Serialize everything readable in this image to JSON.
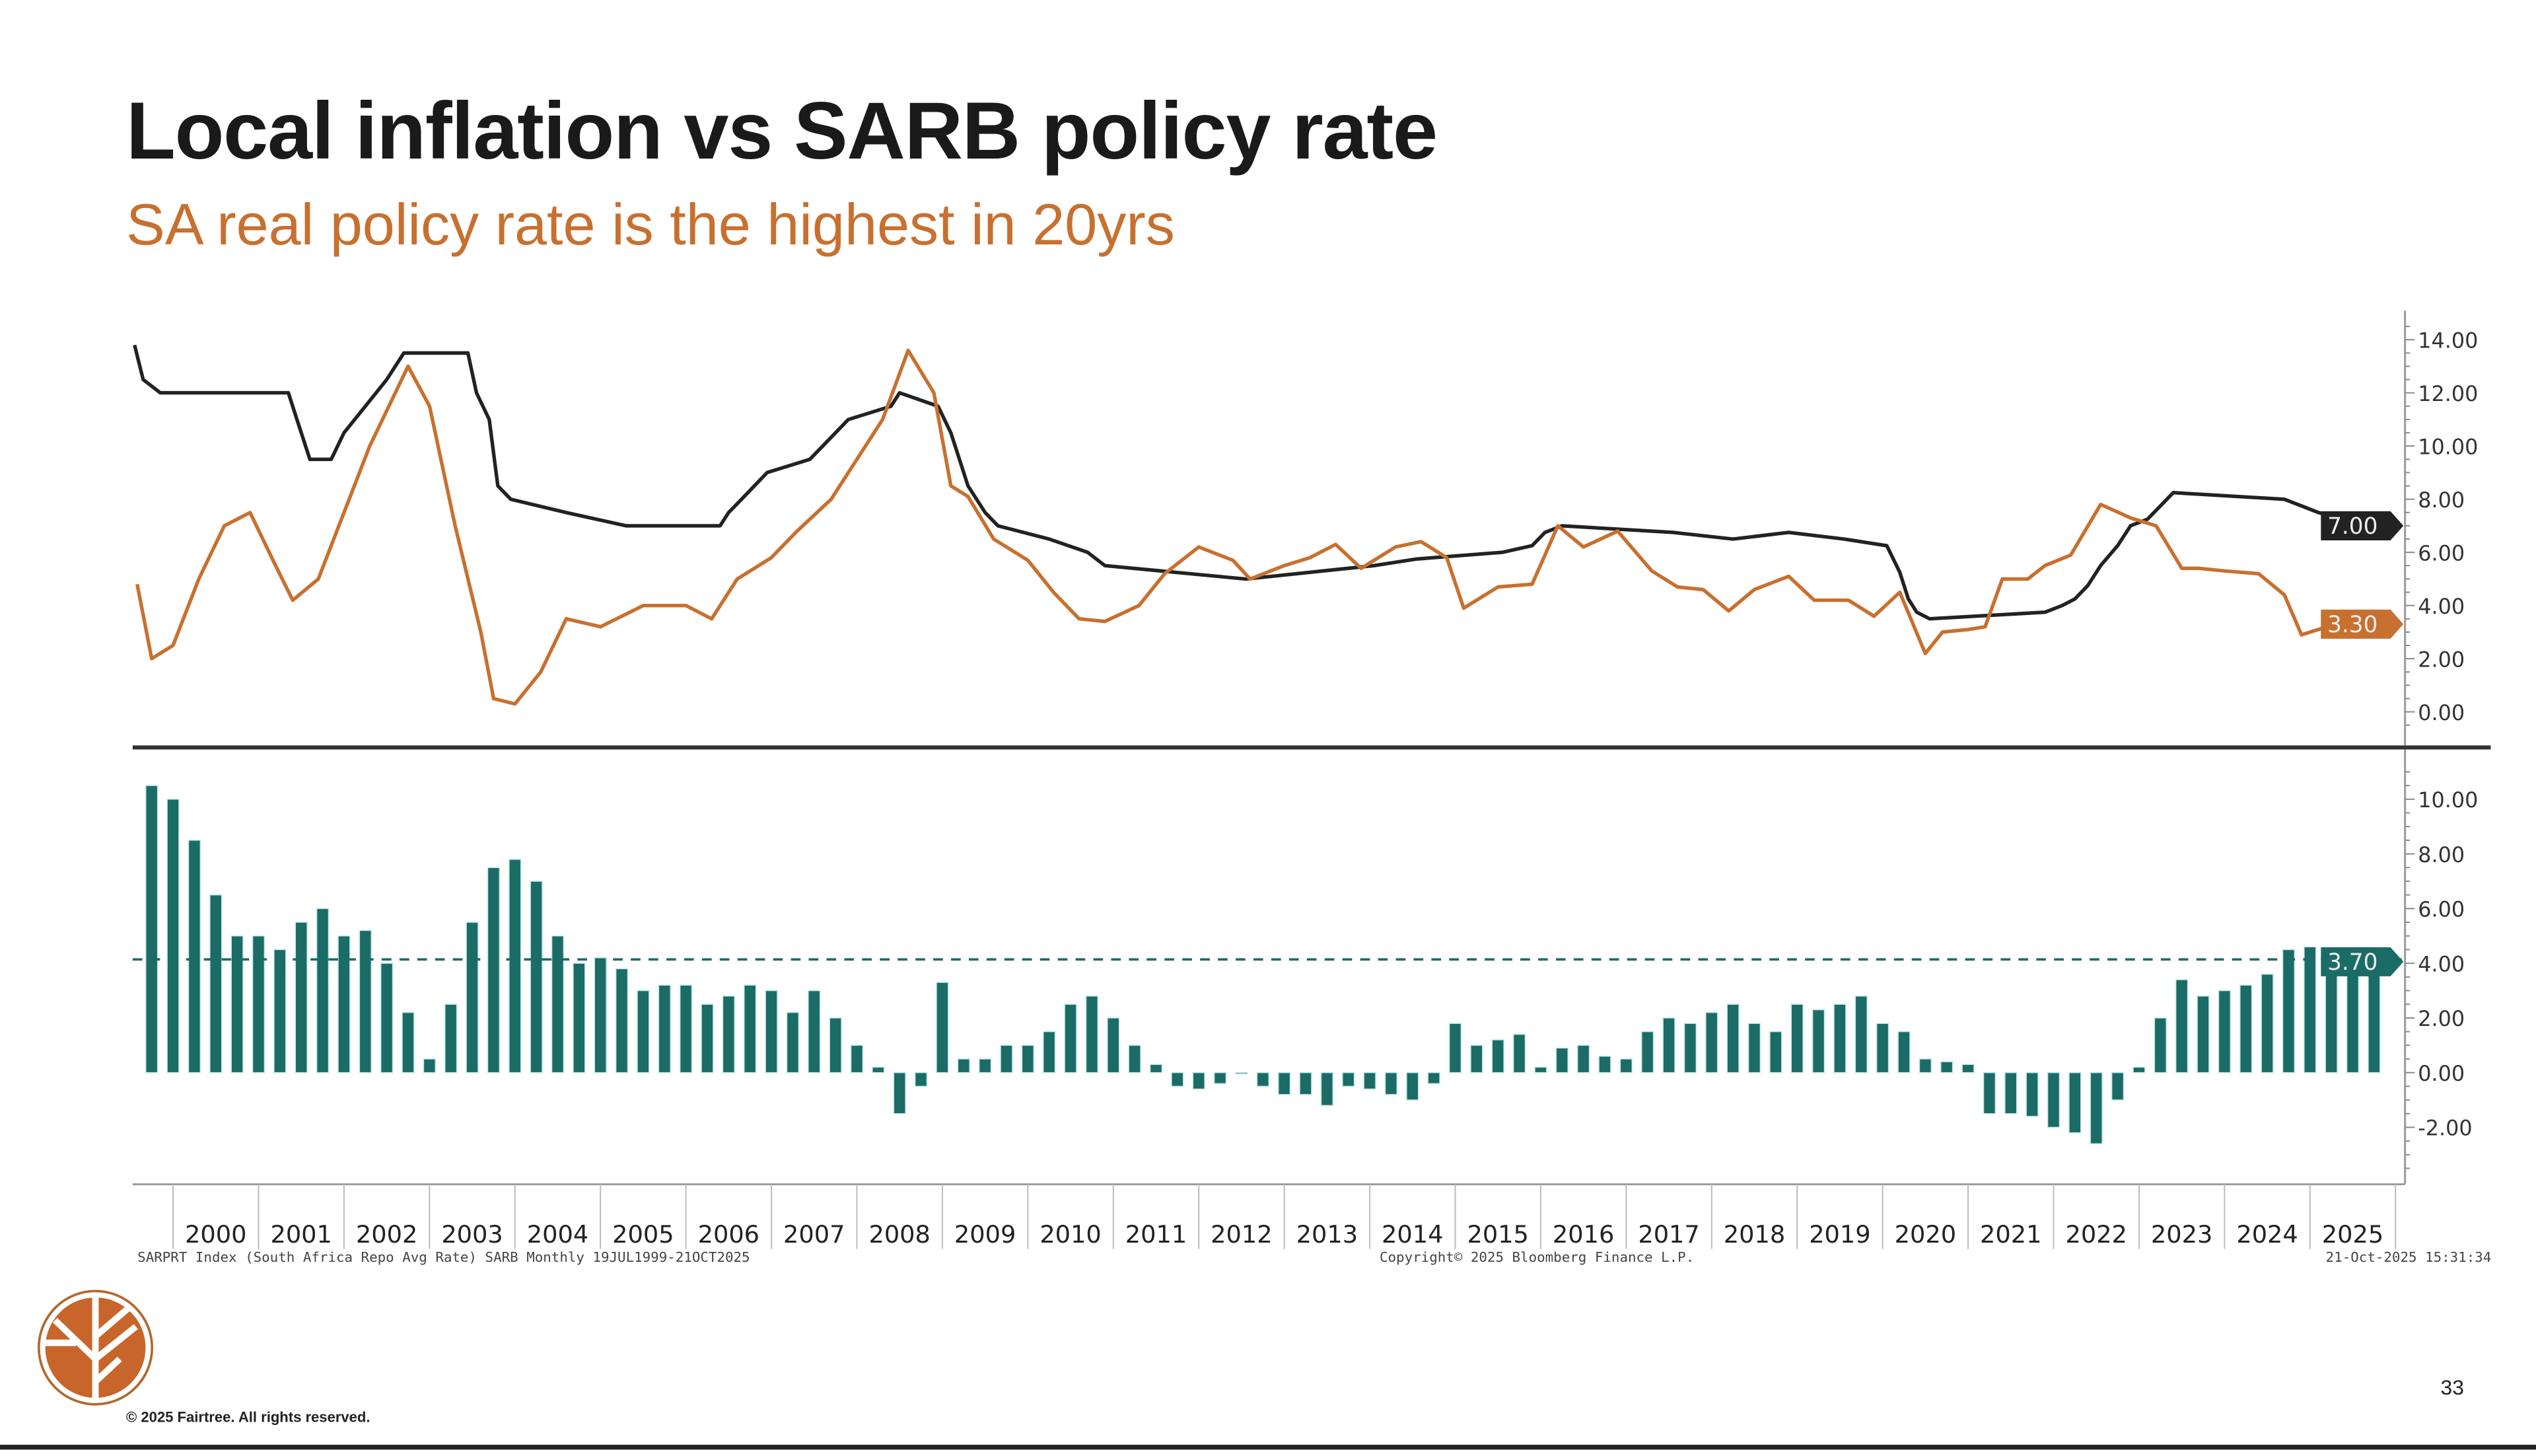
{
  "header": {
    "title": "Local inflation vs SARB policy rate",
    "subtitle": "SA real policy rate is the highest in 20yrs"
  },
  "footer": {
    "source": "SARPRT Index (South Africa Repo Avg Rate) SARB Monthly 19JUL1999-21OCT2025",
    "bloomberg_copyright": "Copyright© 2025 Bloomberg Finance L.P.",
    "timestamp": "21-Oct-2025 15:31:34",
    "copyright": "© 2025 Fairtree. All rights reserved.",
    "page_number": "33",
    "logo_text": "Fairtree"
  },
  "colors": {
    "repo": "#222222",
    "cpi": "#c8702f",
    "real_rate": "#1b6b66",
    "real_rate_light": "#bfe9e6",
    "accent": "#c8702f"
  },
  "chart_data": [
    {
      "type": "line",
      "panel": "top",
      "ylim": [
        -1,
        15
      ],
      "yticks": [
        "14.00",
        "12.00",
        "10.00",
        "8.00",
        "6.00",
        "4.00",
        "2.00",
        "0.00"
      ],
      "ytick_values": [
        14,
        12,
        10,
        8,
        6,
        4,
        2,
        0
      ],
      "grid": false,
      "series": [
        {
          "key": "repo",
          "last_value_label": "7.00",
          "step": true,
          "points": [
            [
              1999.55,
              13.8
            ],
            [
              1999.65,
              12.5
            ],
            [
              1999.85,
              12
            ],
            [
              2001.35,
              12
            ],
            [
              2001.45,
              11
            ],
            [
              2001.6,
              9.5
            ],
            [
              2001.85,
              9.5
            ],
            [
              2002.0,
              10.5
            ],
            [
              2002.25,
              11.5
            ],
            [
              2002.5,
              12.5
            ],
            [
              2002.7,
              13.5
            ],
            [
              2003.45,
              13.5
            ],
            [
              2003.55,
              12
            ],
            [
              2003.7,
              11
            ],
            [
              2003.8,
              8.5
            ],
            [
              2003.95,
              8
            ],
            [
              2004.6,
              7.5
            ],
            [
              2005.3,
              7
            ],
            [
              2006.4,
              7
            ],
            [
              2006.5,
              7.5
            ],
            [
              2006.65,
              8
            ],
            [
              2006.95,
              9
            ],
            [
              2007.45,
              9.5
            ],
            [
              2007.6,
              10
            ],
            [
              2007.9,
              11
            ],
            [
              2008.4,
              11.5
            ],
            [
              2008.5,
              12
            ],
            [
              2008.95,
              11.5
            ],
            [
              2009.1,
              10.5
            ],
            [
              2009.3,
              8.5
            ],
            [
              2009.5,
              7.5
            ],
            [
              2009.65,
              7
            ],
            [
              2010.25,
              6.5
            ],
            [
              2010.7,
              6
            ],
            [
              2010.9,
              5.5
            ],
            [
              2012.55,
              5
            ],
            [
              2014.05,
              5.5
            ],
            [
              2014.55,
              5.75
            ],
            [
              2015.55,
              6
            ],
            [
              2015.9,
              6.25
            ],
            [
              2016.05,
              6.75
            ],
            [
              2016.25,
              7
            ],
            [
              2017.55,
              6.75
            ],
            [
              2018.25,
              6.5
            ],
            [
              2018.9,
              6.75
            ],
            [
              2019.55,
              6.5
            ],
            [
              2020.05,
              6.25
            ],
            [
              2020.2,
              5.25
            ],
            [
              2020.3,
              4.25
            ],
            [
              2020.4,
              3.75
            ],
            [
              2020.55,
              3.5
            ],
            [
              2021.9,
              3.75
            ],
            [
              2022.1,
              4
            ],
            [
              2022.25,
              4.25
            ],
            [
              2022.4,
              4.75
            ],
            [
              2022.55,
              5.5
            ],
            [
              2022.75,
              6.25
            ],
            [
              2022.9,
              7
            ],
            [
              2023.1,
              7.25
            ],
            [
              2023.25,
              7.75
            ],
            [
              2023.4,
              8.25
            ],
            [
              2024.7,
              8
            ],
            [
              2024.9,
              7.75
            ],
            [
              2025.1,
              7.5
            ],
            [
              2025.4,
              7.25
            ],
            [
              2025.6,
              7
            ],
            [
              2025.73,
              7
            ]
          ]
        },
        {
          "key": "cpi",
          "last_value_label": "3.30",
          "step": false,
          "points": [
            [
              1999.58,
              4.8
            ],
            [
              1999.75,
              2.0
            ],
            [
              2000.0,
              2.5
            ],
            [
              2000.3,
              5
            ],
            [
              2000.6,
              7
            ],
            [
              2000.9,
              7.5
            ],
            [
              2001.2,
              5.5
            ],
            [
              2001.4,
              4.2
            ],
            [
              2001.7,
              5
            ],
            [
              2002.0,
              7.5
            ],
            [
              2002.3,
              10
            ],
            [
              2002.75,
              13
            ],
            [
              2003.0,
              11.5
            ],
            [
              2003.3,
              7
            ],
            [
              2003.6,
              3
            ],
            [
              2003.75,
              0.5
            ],
            [
              2004.0,
              0.3
            ],
            [
              2004.3,
              1.5
            ],
            [
              2004.6,
              3.5
            ],
            [
              2005.0,
              3.2
            ],
            [
              2005.5,
              4
            ],
            [
              2006.0,
              4
            ],
            [
              2006.3,
              3.5
            ],
            [
              2006.6,
              5
            ],
            [
              2007.0,
              5.8
            ],
            [
              2007.3,
              6.8
            ],
            [
              2007.7,
              8
            ],
            [
              2008.0,
              9.5
            ],
            [
              2008.3,
              11
            ],
            [
              2008.6,
              13.6
            ],
            [
              2008.9,
              12.0
            ],
            [
              2009.1,
              8.5
            ],
            [
              2009.3,
              8.1
            ],
            [
              2009.6,
              6.5
            ],
            [
              2010.0,
              5.7
            ],
            [
              2010.3,
              4.5
            ],
            [
              2010.6,
              3.5
            ],
            [
              2010.9,
              3.4
            ],
            [
              2011.3,
              4
            ],
            [
              2011.6,
              5.2
            ],
            [
              2012.0,
              6.2
            ],
            [
              2012.4,
              5.7
            ],
            [
              2012.6,
              5
            ],
            [
              2013.0,
              5.5
            ],
            [
              2013.3,
              5.8
            ],
            [
              2013.6,
              6.3
            ],
            [
              2013.9,
              5.4
            ],
            [
              2014.3,
              6.2
            ],
            [
              2014.6,
              6.4
            ],
            [
              2014.9,
              5.8
            ],
            [
              2015.1,
              3.9
            ],
            [
              2015.5,
              4.7
            ],
            [
              2015.9,
              4.8
            ],
            [
              2016.2,
              7
            ],
            [
              2016.5,
              6.2
            ],
            [
              2016.9,
              6.8
            ],
            [
              2017.3,
              5.3
            ],
            [
              2017.6,
              4.7
            ],
            [
              2017.9,
              4.6
            ],
            [
              2018.2,
              3.8
            ],
            [
              2018.5,
              4.6
            ],
            [
              2018.9,
              5.1
            ],
            [
              2019.2,
              4.2
            ],
            [
              2019.6,
              4.2
            ],
            [
              2019.9,
              3.6
            ],
            [
              2020.2,
              4.5
            ],
            [
              2020.5,
              2.2
            ],
            [
              2020.7,
              3.0
            ],
            [
              2021.0,
              3.1
            ],
            [
              2021.2,
              3.2
            ],
            [
              2021.4,
              5
            ],
            [
              2021.7,
              5
            ],
            [
              2021.9,
              5.5
            ],
            [
              2022.2,
              5.9
            ],
            [
              2022.55,
              7.8
            ],
            [
              2022.9,
              7.3
            ],
            [
              2023.2,
              7
            ],
            [
              2023.5,
              5.4
            ],
            [
              2023.7,
              5.4
            ],
            [
              2024.0,
              5.3
            ],
            [
              2024.4,
              5.2
            ],
            [
              2024.7,
              4.4
            ],
            [
              2024.9,
              2.9
            ],
            [
              2025.2,
              3.2
            ],
            [
              2025.5,
              2.9
            ],
            [
              2025.73,
              3.3
            ]
          ]
        }
      ]
    },
    {
      "type": "bar",
      "panel": "bottom",
      "ylim": [
        -4,
        11
      ],
      "yticks": [
        "10.00",
        "8.00",
        "6.00",
        "4.00",
        "2.00",
        "0.00",
        "-2.00"
      ],
      "ytick_values": [
        10,
        8,
        6,
        4,
        2,
        0,
        -2
      ],
      "reference_line": 4.14,
      "last_value_label": "3.70",
      "x_start": 1999.75,
      "x_step": 0.25,
      "values": [
        10.5,
        10.0,
        8.5,
        6.5,
        5.0,
        5.0,
        4.5,
        5.5,
        6.0,
        5.0,
        5.2,
        4.0,
        2.2,
        0.5,
        2.5,
        5.5,
        7.5,
        7.8,
        7.0,
        5.0,
        4.0,
        4.2,
        3.8,
        3.0,
        3.2,
        3.2,
        2.5,
        2.8,
        3.2,
        3.0,
        2.2,
        3.0,
        2.0,
        1.0,
        0.2,
        -1.5,
        -0.5,
        3.3,
        0.5,
        0.5,
        1.0,
        1.0,
        1.5,
        2.5,
        2.8,
        2.0,
        1.0,
        0.3,
        -0.5,
        -0.6,
        -0.4,
        0.0,
        -0.5,
        -0.8,
        -0.8,
        -1.2,
        -0.5,
        -0.6,
        -0.8,
        -1.0,
        -0.4,
        1.8,
        1.0,
        1.2,
        1.4,
        0.2,
        0.9,
        1.0,
        0.6,
        0.5,
        1.5,
        2.0,
        1.8,
        2.2,
        2.5,
        1.8,
        1.5,
        2.5,
        2.3,
        2.5,
        2.8,
        1.8,
        1.5,
        0.5,
        0.4,
        0.3,
        -1.5,
        -1.5,
        -1.6,
        -2.0,
        -2.2,
        -2.6,
        -1.0,
        0.2,
        2.0,
        3.4,
        2.8,
        3.0,
        3.2,
        3.6,
        4.5,
        4.6,
        4.4,
        4.2,
        3.7
      ]
    }
  ],
  "x_axis": {
    "tick_labels": [
      "2000",
      "2001",
      "2002",
      "2003",
      "2004",
      "2005",
      "2006",
      "2007",
      "2008",
      "2009",
      "2010",
      "2011",
      "2012",
      "2013",
      "2014",
      "2015",
      "2016",
      "2017",
      "2018",
      "2019",
      "2020",
      "2021",
      "2022",
      "2023",
      "2024",
      "2025"
    ],
    "range": [
      1999.55,
      2025.85
    ]
  }
}
